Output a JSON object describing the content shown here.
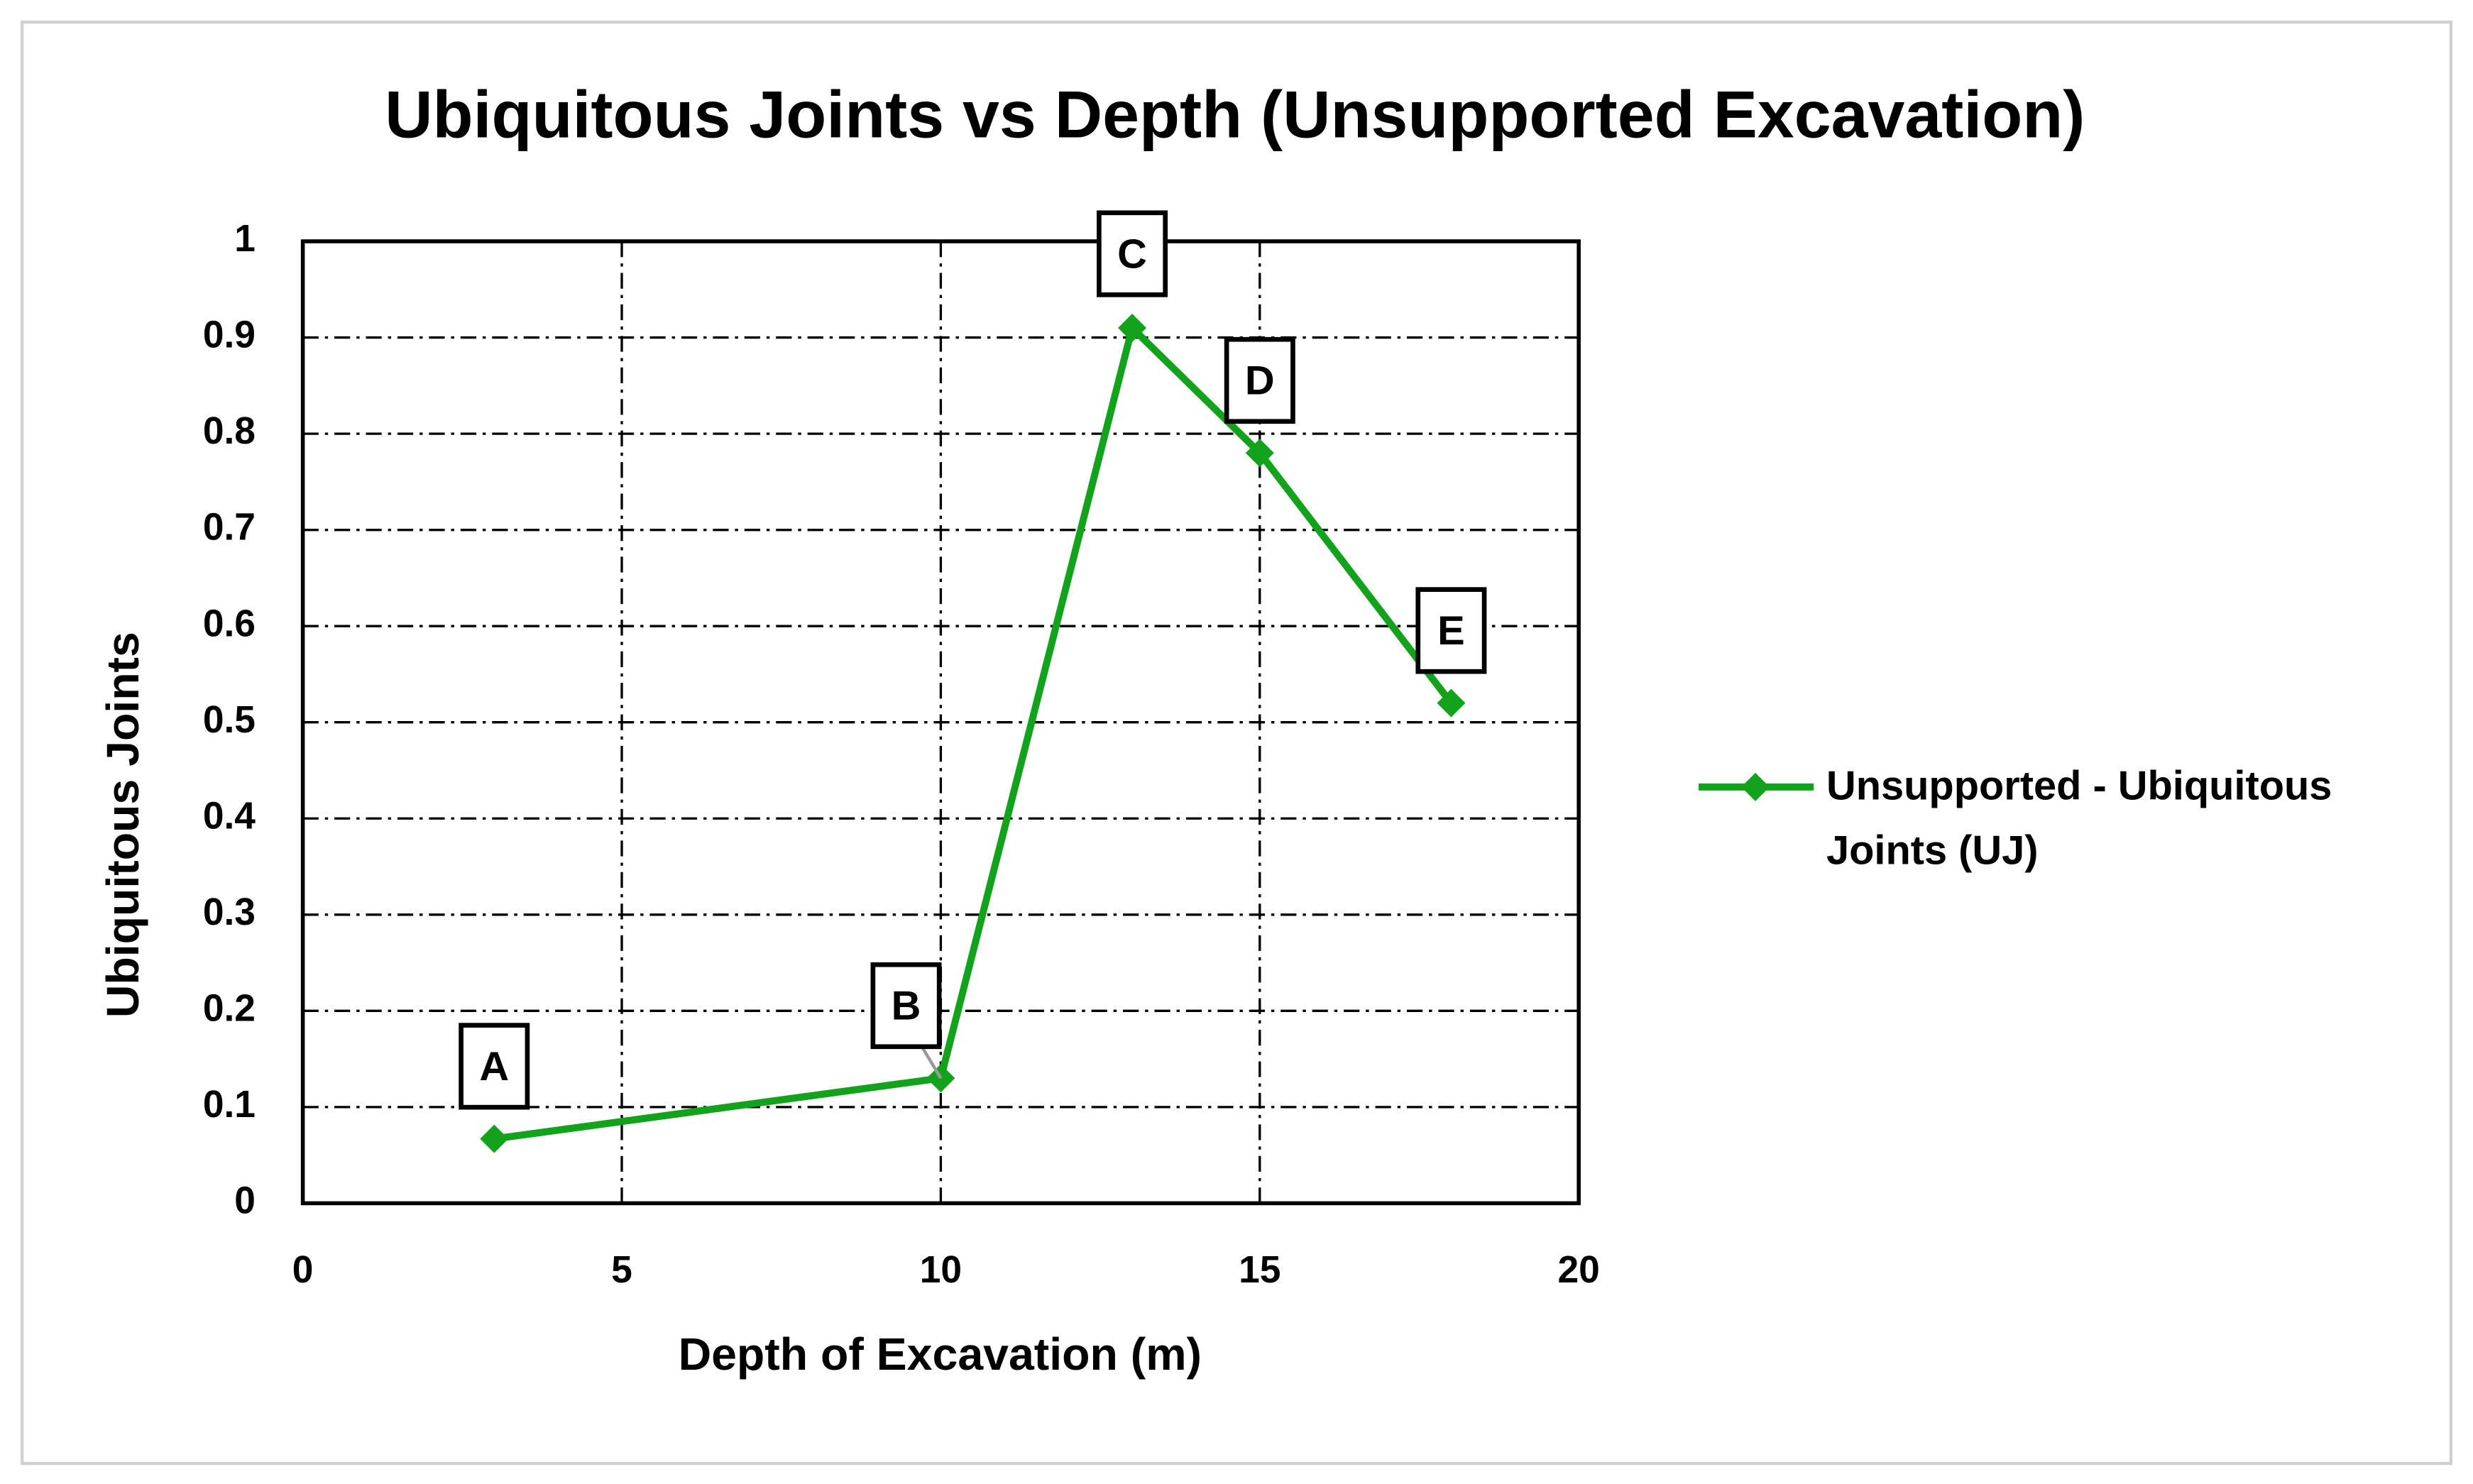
{
  "chart_data": {
    "type": "line",
    "title": "Ubiquitous Joints vs Depth (Unsupported Excavation)",
    "x_label": "Depth of Excavation (m)",
    "y_label": "Ubiquitous Joints",
    "x": [
      3,
      10,
      13,
      15,
      18
    ],
    "series": [
      {
        "name": "Unsupported - Ubiquitous Joints (UJ)",
        "color": "#13a21c",
        "values": [
          0.067,
          0.13,
          0.91,
          0.78,
          0.52
        ],
        "annotations": [
          "A",
          "B",
          "C",
          "D",
          "E"
        ]
      }
    ],
    "xlim": [
      0,
      20
    ],
    "xticks": [
      0,
      5,
      10,
      15,
      20
    ],
    "ylim": [
      0,
      1
    ],
    "yticks": [
      0,
      0.1,
      0.2,
      0.3,
      0.4,
      0.5,
      0.6,
      0.7,
      0.8,
      0.9,
      1
    ],
    "grid": true,
    "legend": "right"
  }
}
